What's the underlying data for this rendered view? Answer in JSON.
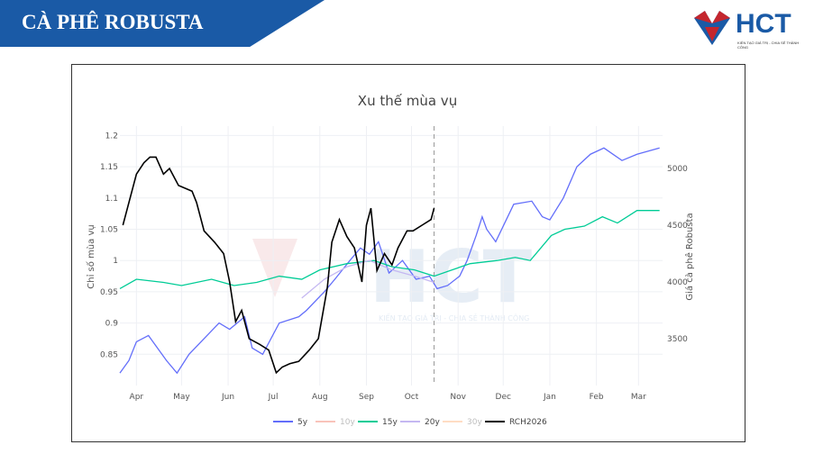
{
  "header": {
    "title": "CÀ PHÊ ROBUSTA",
    "logo_text": "HCT",
    "logo_tagline": "KIẾN TẠO GIÁ TRỊ - CHIA SẺ THÀNH CÔNG"
  },
  "chart_data": {
    "type": "line",
    "title": "Xu thế mùa vụ",
    "ylabel": "Chỉ số mùa vụ",
    "y2label": "Giá cà phê Robusta",
    "watermark": "HCT",
    "watermark_tagline": "KIẾN TẠO GIÁ TRỊ - CHIA SẺ THÀNH CÔNG",
    "x_unit": "days since Apr 1",
    "xlim": [
      -11,
      350
    ],
    "ylim": [
      0.8,
      1.215
    ],
    "y2lim": [
      3150,
      5450
    ],
    "x_ticks": [
      {
        "label": "Apr",
        "x": 0
      },
      {
        "label": "May",
        "x": 30
      },
      {
        "label": "Jun",
        "x": 61
      },
      {
        "label": "Jul",
        "x": 91
      },
      {
        "label": "Aug",
        "x": 122
      },
      {
        "label": "Sep",
        "x": 153
      },
      {
        "label": "Oct",
        "x": 183
      },
      {
        "label": "Nov",
        "x": 214
      },
      {
        "label": "Dec",
        "x": 244
      },
      {
        "label": "Jan",
        "x": 275
      },
      {
        "label": "Feb",
        "x": 306
      },
      {
        "label": "Mar",
        "x": 334
      }
    ],
    "y_ticks": [
      "0.85",
      "0.9",
      "0.95",
      "1",
      "1.05",
      "1.1",
      "1.15",
      "1.2"
    ],
    "y2_ticks": [
      "3500",
      "4000",
      "4500",
      "5000"
    ],
    "today_x": 198,
    "series": [
      {
        "name": "5y",
        "color": "#636efa",
        "axis": "left",
        "visible": true,
        "x": [
          -11,
          -5,
          0,
          8,
          20,
          27,
          35,
          47,
          55,
          62,
          72,
          77,
          84,
          95,
          108,
          113,
          125,
          132,
          142,
          149,
          155,
          161,
          168,
          177,
          186,
          195,
          200,
          207,
          215,
          220,
          226,
          230,
          233,
          239,
          245,
          251,
          263,
          270,
          275,
          284,
          293,
          302,
          311,
          323,
          333,
          348
        ],
        "y": [
          0.82,
          0.84,
          0.87,
          0.88,
          0.84,
          0.82,
          0.85,
          0.88,
          0.9,
          0.89,
          0.91,
          0.86,
          0.85,
          0.9,
          0.91,
          0.92,
          0.95,
          0.97,
          1.0,
          1.02,
          1.01,
          1.03,
          0.98,
          1.0,
          0.97,
          0.975,
          0.955,
          0.96,
          0.975,
          1.0,
          1.04,
          1.07,
          1.05,
          1.03,
          1.06,
          1.09,
          1.095,
          1.07,
          1.065,
          1.1,
          1.15,
          1.17,
          1.18,
          1.16,
          1.17,
          1.18
        ]
      },
      {
        "name": "10y",
        "color": "#ef553b",
        "axis": "left",
        "visible": false,
        "x": [],
        "y": []
      },
      {
        "name": "15y",
        "color": "#00cc96",
        "axis": "left",
        "visible": true,
        "x": [
          -11,
          0,
          18,
          30,
          50,
          65,
          80,
          95,
          110,
          122,
          140,
          158,
          170,
          185,
          198,
          210,
          222,
          240,
          252,
          262,
          276,
          285,
          298,
          310,
          320,
          333,
          348
        ],
        "y": [
          0.955,
          0.97,
          0.965,
          0.96,
          0.97,
          0.96,
          0.965,
          0.975,
          0.97,
          0.985,
          0.995,
          1.0,
          0.99,
          0.985,
          0.975,
          0.985,
          0.995,
          1.0,
          1.005,
          1.0,
          1.04,
          1.05,
          1.055,
          1.07,
          1.06,
          1.08,
          1.08
        ]
      },
      {
        "name": "20y",
        "color": "#c5b8f2",
        "axis": "left",
        "visible": true,
        "x": [
          110,
          125,
          140,
          155,
          170,
          185,
          198
        ],
        "y": [
          0.94,
          0.97,
          0.99,
          1.0,
          0.985,
          0.975,
          0.965
        ]
      },
      {
        "name": "30y",
        "color": "#ffa15a",
        "axis": "left",
        "visible": false,
        "x": [],
        "y": []
      },
      {
        "name": "RCH2026",
        "color": "#000000",
        "axis": "right",
        "visible": true,
        "x": [
          -9,
          -7,
          0,
          5,
          9,
          13,
          18,
          22,
          28,
          37,
          40,
          45,
          52,
          58,
          62,
          66,
          70,
          75,
          82,
          88,
          93,
          97,
          102,
          108,
          115,
          121,
          127,
          130,
          135,
          140,
          145,
          150,
          153,
          156,
          160,
          165,
          170,
          174,
          180,
          184,
          190,
          196,
          198
        ],
        "y": [
          4500,
          4600,
          4950,
          5050,
          5100,
          5100,
          4950,
          5000,
          4850,
          4800,
          4700,
          4450,
          4350,
          4250,
          4000,
          3650,
          3750,
          3500,
          3450,
          3400,
          3200,
          3250,
          3280,
          3300,
          3400,
          3500,
          3950,
          4350,
          4550,
          4400,
          4300,
          4000,
          4500,
          4650,
          4100,
          4250,
          4150,
          4300,
          4450,
          4450,
          4500,
          4550,
          4650
        ]
      }
    ]
  }
}
